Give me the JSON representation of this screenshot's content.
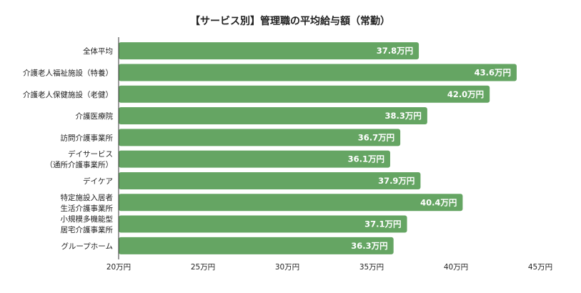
{
  "chart_data": {
    "type": "bar",
    "orientation": "horizontal",
    "title": "【サービス別】管理職の平均給与額（常勤）",
    "categories": [
      [
        "全体平均"
      ],
      [
        "介護老人福祉施設（特養）"
      ],
      [
        "介護老人保健施設（老健）"
      ],
      [
        "介護医療院"
      ],
      [
        "訪問介護事業所"
      ],
      [
        "デイサービス",
        "（通所介護事業所）"
      ],
      [
        "デイケア"
      ],
      [
        "特定施設入居者",
        "生活介護事業所"
      ],
      [
        "小規模多機能型",
        "居宅介護事業所"
      ],
      [
        "グループホーム"
      ]
    ],
    "values": [
      37.8,
      43.6,
      42.0,
      38.3,
      36.7,
      36.1,
      37.9,
      40.4,
      37.1,
      36.3
    ],
    "value_labels": [
      "37.8万円",
      "43.6万円",
      "42.0万円",
      "38.3万円",
      "36.7万円",
      "36.1万円",
      "37.9万円",
      "40.4万円",
      "37.1万円",
      "36.3万円"
    ],
    "xlim": [
      20,
      45
    ],
    "xticks": [
      20,
      25,
      30,
      35,
      40,
      45
    ],
    "xtick_labels": [
      "20万円",
      "25万円",
      "30万円",
      "35万円",
      "40万円",
      "45万円"
    ],
    "xlabel": "",
    "ylabel": "",
    "grid": false,
    "legend": "none",
    "bar_color": "#65a563"
  }
}
